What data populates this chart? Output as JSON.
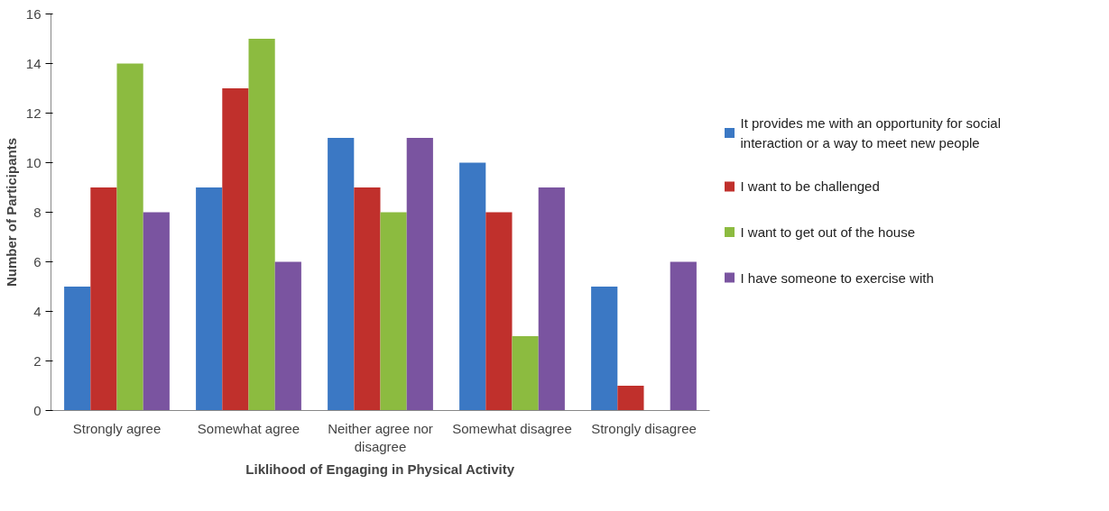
{
  "chart_data": {
    "type": "bar",
    "xlabel": "Liklihood of Engaging in Physical Activity",
    "ylabel": "Number of Participants",
    "categories": [
      "Strongly agree",
      "Somewhat agree",
      "Neither agree nor disagree",
      "Somewhat disagree",
      "Strongly disagree"
    ],
    "series": [
      {
        "name": "It provides me with an opportunity for social interaction or a way to meet new people",
        "color": "#3b78c4",
        "values": [
          5,
          9,
          11,
          10,
          5
        ]
      },
      {
        "name": "I want to be challenged",
        "color": "#c0302c",
        "values": [
          9,
          13,
          9,
          8,
          1
        ]
      },
      {
        "name": "I want to get out of the house",
        "color": "#8cbb40",
        "values": [
          14,
          15,
          8,
          3,
          0
        ]
      },
      {
        "name": "I have someone to exercise with",
        "color": "#7a54a0",
        "values": [
          8,
          6,
          11,
          9,
          6
        ]
      }
    ],
    "ylim": [
      0,
      16
    ],
    "yticks": [
      0,
      2,
      4,
      6,
      8,
      10,
      12,
      14,
      16
    ],
    "grid": false,
    "legend": "right"
  }
}
